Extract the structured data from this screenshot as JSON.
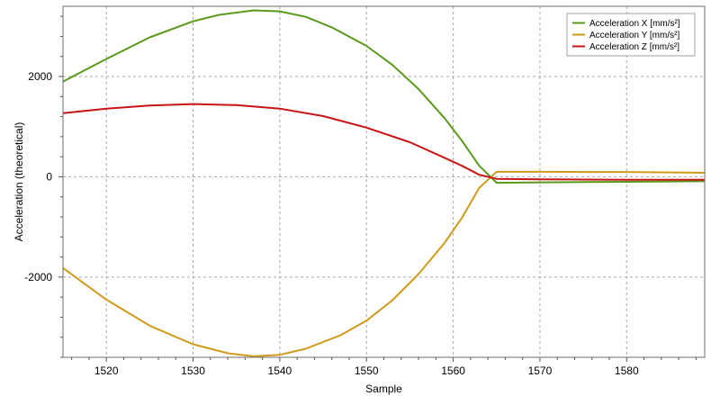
{
  "chart_data": {
    "type": "line",
    "title": "",
    "xlabel": "Sample",
    "ylabel": "Acceleration (theoretical)",
    "xlim": [
      1515,
      1589
    ],
    "ylim": [
      -3600,
      3400
    ],
    "xticks": [
      1520,
      1530,
      1540,
      1550,
      1560,
      1570,
      1580
    ],
    "yticks": [
      -2000,
      0,
      2000
    ],
    "x_minor_step": 2,
    "y_minor_step": 400,
    "grid": true,
    "legend_position": "top-right",
    "colors": {
      "plot_border": "#6e6e6e",
      "grid": "#a8a8a8",
      "background": "#ffffff"
    },
    "series": [
      {
        "name": "Acceleration X [mm/s²]",
        "color": "#5a9a1a",
        "points": [
          [
            1515,
            1900
          ],
          [
            1520,
            2350
          ],
          [
            1525,
            2780
          ],
          [
            1530,
            3100
          ],
          [
            1533,
            3230
          ],
          [
            1537,
            3320
          ],
          [
            1540,
            3300
          ],
          [
            1543,
            3190
          ],
          [
            1546,
            2980
          ],
          [
            1550,
            2610
          ],
          [
            1553,
            2230
          ],
          [
            1556,
            1750
          ],
          [
            1559,
            1170
          ],
          [
            1561,
            720
          ],
          [
            1563,
            220
          ],
          [
            1565,
            -120
          ],
          [
            1570,
            -110
          ],
          [
            1575,
            -105
          ],
          [
            1580,
            -100
          ],
          [
            1589,
            -90
          ]
        ]
      },
      {
        "name": "Acceleration Y [mm/s²]",
        "color": "#d09a1a",
        "points": [
          [
            1515,
            -1820
          ],
          [
            1520,
            -2450
          ],
          [
            1525,
            -2970
          ],
          [
            1530,
            -3340
          ],
          [
            1534,
            -3520
          ],
          [
            1537,
            -3580
          ],
          [
            1540,
            -3550
          ],
          [
            1543,
            -3430
          ],
          [
            1547,
            -3160
          ],
          [
            1550,
            -2870
          ],
          [
            1553,
            -2460
          ],
          [
            1556,
            -1940
          ],
          [
            1559,
            -1320
          ],
          [
            1561,
            -820
          ],
          [
            1563,
            -220
          ],
          [
            1565,
            100
          ],
          [
            1570,
            100
          ],
          [
            1575,
            95
          ],
          [
            1580,
            95
          ],
          [
            1589,
            80
          ]
        ]
      },
      {
        "name": "Acceleration Z [mm/s²]",
        "color": "#c81414",
        "points": [
          [
            1515,
            1270
          ],
          [
            1520,
            1360
          ],
          [
            1525,
            1420
          ],
          [
            1530,
            1450
          ],
          [
            1535,
            1430
          ],
          [
            1540,
            1360
          ],
          [
            1545,
            1210
          ],
          [
            1550,
            980
          ],
          [
            1555,
            690
          ],
          [
            1559,
            380
          ],
          [
            1561,
            220
          ],
          [
            1563,
            40
          ],
          [
            1565,
            -40
          ],
          [
            1570,
            -50
          ],
          [
            1575,
            -55
          ],
          [
            1580,
            -60
          ],
          [
            1589,
            -60
          ]
        ]
      }
    ]
  }
}
